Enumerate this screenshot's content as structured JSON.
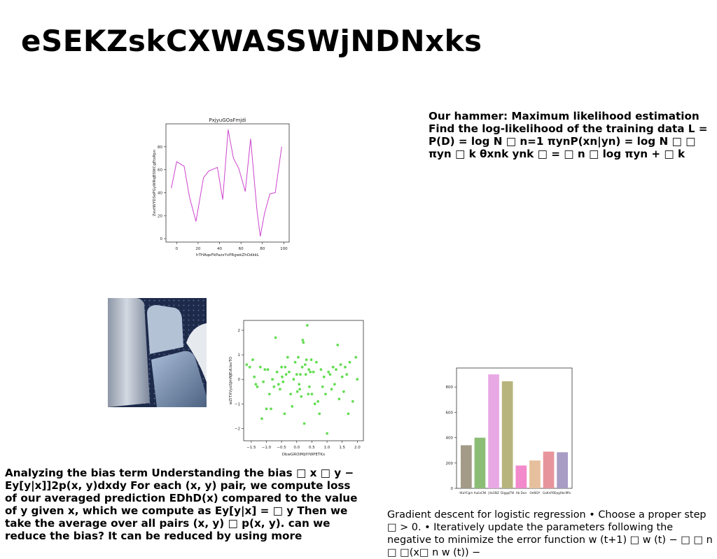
{
  "page": {
    "title": "eSEKZskCXWASSWjNDNxks"
  },
  "text_blocks": {
    "hammer": "Our hammer: Maximum likelihood estimation Find the log-likelihood of the training data L = P(D) = log N □ n=1 πynP(xn|yn) = log N □ □ πyn □ k θxnk ynk □ = □ n □ log πyn + □ k",
    "bias": "Analyzing the bias term Understanding the bias □ x □ y − Ey[y|x]]2p(x, y)dxdy For each (x, y) pair, we compute loss of our averaged prediction EDhD(x) compared to the value of y given x, which we compute as Ey[y|x] = □ y Then we take the average over all pairs (x, y) □ p(x, y). can we reduce the bias? It can be reduced by using more",
    "gradient": "Gradient descent for logistic regression • Choose a proper step □ > 0. • Iteratively update the parameters following the negative to minimize the error function w (t+1) □ w (t) − □ □ n □ □(x□ n w (t)) −"
  },
  "chart_data": [
    {
      "type": "line",
      "title": "PxjyuGOaFmjdi",
      "xlabel": "hTHAqeFkPazxYvPRgwkZhOdkkL",
      "ylabel": "ZevtWYDSoPGyWRqBSWCgEtsRpn",
      "xlim": [
        -10,
        105
      ],
      "ylim": [
        -3,
        100
      ],
      "xticks": [
        0,
        20,
        40,
        60,
        80,
        100
      ],
      "yticks": [
        0,
        20,
        40,
        60,
        80
      ],
      "color": "#cc44cc",
      "grid": false,
      "x": [
        -5,
        0,
        7,
        12,
        18,
        25,
        30,
        38,
        43,
        48,
        53,
        58,
        64,
        69,
        75,
        78,
        82,
        87,
        92,
        98
      ],
      "y": [
        44,
        67,
        63,
        36,
        15,
        53,
        59,
        62,
        34,
        95,
        70,
        61,
        41,
        87,
        24,
        2,
        22,
        39,
        40,
        80
      ]
    },
    {
      "type": "scatter",
      "title": "",
      "xlabel": "DbwGROlMjlIYWPETKx",
      "ylabel": "wZiTXVyoSJmNJEdUavTO",
      "xlim": [
        -1.75,
        2.2
      ],
      "ylim": [
        -2.5,
        2.4
      ],
      "xticks": [
        -1.5,
        -1.0,
        -0.5,
        0.0,
        0.5,
        1.0,
        1.5,
        2.0
      ],
      "xtick_labels": [
        "−1.5",
        "−1.0",
        "−0.5",
        "0.0",
        "0.5",
        "1.0",
        "1.5",
        "2.0"
      ],
      "yticks": [
        -2,
        -1,
        0,
        1,
        2
      ],
      "ytick_labels": [
        "−2",
        "−1",
        "0",
        "1",
        "2"
      ],
      "color": "#66dd55",
      "grid": false,
      "x": [
        -1.65,
        -1.55,
        -1.45,
        -1.4,
        -1.35,
        -1.3,
        -1.2,
        -1.15,
        -1.1,
        -1.05,
        -1.0,
        -0.95,
        -0.9,
        -0.85,
        -0.8,
        -0.75,
        -0.7,
        -0.65,
        -0.6,
        -0.55,
        -0.5,
        -0.48,
        -0.45,
        -0.4,
        -0.38,
        -0.35,
        -0.3,
        -0.25,
        -0.2,
        -0.15,
        -0.1,
        -0.05,
        0.0,
        0.02,
        0.05,
        0.08,
        0.1,
        0.12,
        0.15,
        0.18,
        0.2,
        0.22,
        0.25,
        0.28,
        0.3,
        0.32,
        0.35,
        0.38,
        0.4,
        0.42,
        0.45,
        0.48,
        0.5,
        0.55,
        0.6,
        0.65,
        0.7,
        0.75,
        0.8,
        0.85,
        0.9,
        0.95,
        1.0,
        1.05,
        1.1,
        1.15,
        1.2,
        1.25,
        1.3,
        1.35,
        1.4,
        1.45,
        1.5,
        1.55,
        1.6,
        1.65,
        1.7,
        1.75,
        1.85,
        1.95,
        2.0
      ],
      "y": [
        0.6,
        0.5,
        0.8,
        0.1,
        -0.2,
        -0.3,
        0.5,
        -1.6,
        -0.1,
        0.4,
        -1.2,
        0.4,
        -0.6,
        -1.2,
        0.0,
        -0.3,
        1.7,
        0.3,
        -0.2,
        -0.4,
        0.5,
        0.1,
        -0.1,
        -1.4,
        0.5,
        0.2,
        0.9,
        0.3,
        -0.6,
        -1.1,
        0.0,
        0.7,
        0.2,
        -0.5,
        0.9,
        -0.2,
        -0.4,
        0.2,
        -0.7,
        0.5,
        1.6,
        1.5,
        -1.8,
        0.6,
        0.2,
        0.8,
        2.2,
        -0.6,
        0.4,
        -0.3,
        0.3,
        0.8,
        -0.6,
        0.3,
        -1.0,
        0.7,
        -0.9,
        -1.4,
        0.4,
        -0.3,
        0.1,
        -0.6,
        -2.2,
        0.3,
        0.2,
        -0.4,
        0.5,
        -0.2,
        0.4,
        1.4,
        -0.8,
        0.6,
        0.1,
        -0.5,
        0.5,
        0.2,
        -1.4,
        0.7,
        -0.9,
        0.9,
        0.0
      ]
    },
    {
      "type": "bar",
      "title": "",
      "categories": [
        "tKaYCgm",
        "AuliaCNI",
        "jVaGNZ",
        "DiggqTW",
        "Ab Doa",
        "OeNQY",
        "GaKnPO",
        "OpgXbcMfx"
      ],
      "values": [
        340,
        400,
        900,
        845,
        180,
        220,
        290,
        285
      ],
      "colors": [
        "#a49a88",
        "#8cbd77",
        "#e8a8e4",
        "#b8b47e",
        "#f28acb",
        "#e6c09c",
        "#e8949c",
        "#a89bc4"
      ],
      "xlabel": "",
      "ylabel": "",
      "ylim": [
        0,
        950
      ],
      "yticks": [
        0,
        200,
        400,
        600,
        800
      ],
      "grid": false
    }
  ]
}
